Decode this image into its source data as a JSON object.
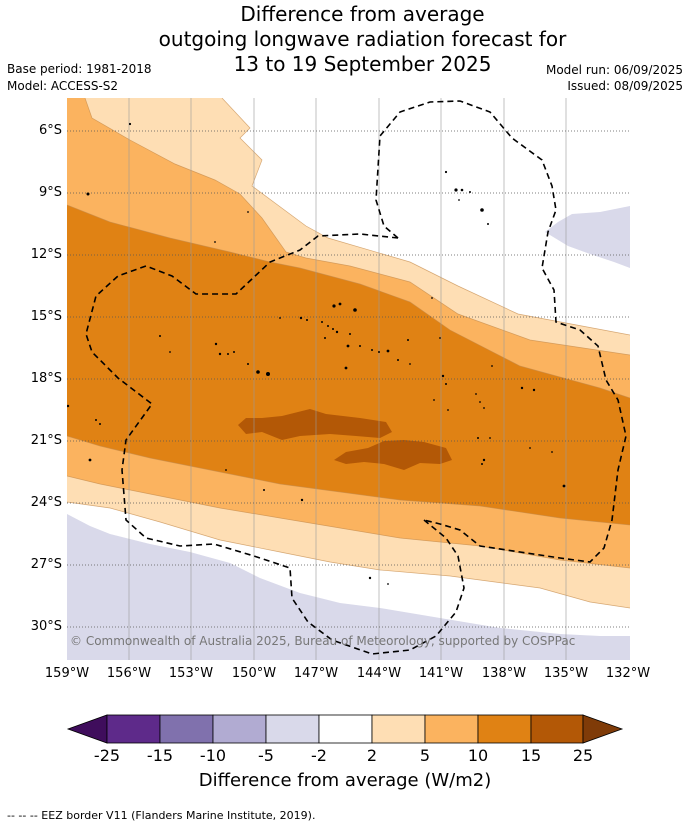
{
  "header": {
    "title_lines": [
      "Difference from average",
      "outgoing longwave radiation forecast for",
      "13 to 19 September 2025"
    ],
    "base_period": "Base period: 1981-2018",
    "model": "Model: ACCESS-S2",
    "model_run": "Model run: 06/09/2025",
    "issued": "Issued: 08/09/2025"
  },
  "map": {
    "lat_labels": [
      "6°S",
      "9°S",
      "12°S",
      "15°S",
      "18°S",
      "21°S",
      "24°S",
      "27°S",
      "30°S"
    ],
    "lon_labels": [
      "159°W",
      "156°W",
      "153°W",
      "150°W",
      "147°W",
      "144°W",
      "141°W",
      "138°W",
      "135°W",
      "132°W"
    ],
    "copyright": "© Commonwealth of Australia 2025, Bureau of Meteorology, supported by COSPPac"
  },
  "colorbar": {
    "ticks": [
      "-25",
      "-15",
      "-10",
      "-5",
      "-2",
      "2",
      "5",
      "10",
      "15",
      "25"
    ],
    "colors": [
      "#3f0d5c",
      "#5e2a8a",
      "#8071ad",
      "#b1abd2",
      "#d9d9ea",
      "#ffffff",
      "#fedeb4",
      "#fbb35f",
      "#e08214",
      "#b35806",
      "#7f3b08"
    ],
    "label": "Difference from average (W/m2)"
  },
  "footer": {
    "legend_line": "--  --  -- EEZ border V11 (Flanders Marine Institute, 2019)."
  }
}
